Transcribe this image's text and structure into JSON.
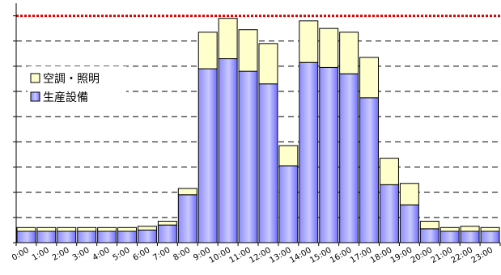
{
  "chart_data": {
    "type": "bar",
    "stacked": true,
    "categories": [
      "0:00",
      "1:00",
      "2:00",
      "3:00",
      "4:00",
      "5:00",
      "6:00",
      "7:00",
      "8:00",
      "9:00",
      "10:00",
      "11:00",
      "12:00",
      "13:00",
      "14:00",
      "15:00",
      "16:00",
      "17:00",
      "18:00",
      "19:00",
      "20:00",
      "21:00",
      "22:00",
      "23:00"
    ],
    "series": [
      {
        "name": "生産設備",
        "color": "#6666ff",
        "values": [
          0.45,
          0.45,
          0.45,
          0.45,
          0.45,
          0.45,
          0.5,
          0.7,
          1.9,
          6.9,
          7.3,
          6.8,
          6.3,
          3.05,
          7.15,
          6.95,
          6.7,
          5.75,
          2.3,
          1.5,
          0.55,
          0.45,
          0.45,
          0.45
        ]
      },
      {
        "name": "空調・照明",
        "color": "#ffffcc",
        "values": [
          0.15,
          0.15,
          0.15,
          0.15,
          0.15,
          0.15,
          0.15,
          0.15,
          0.25,
          1.45,
          1.6,
          1.65,
          1.6,
          0.8,
          1.65,
          1.55,
          1.65,
          1.6,
          1.05,
          0.85,
          0.3,
          0.15,
          0.2,
          0.15
        ]
      }
    ],
    "ylim": [
      0,
      9.5
    ],
    "y_gridlines": [
      1,
      2,
      3,
      4,
      5,
      6,
      7,
      8
    ],
    "reference_line": {
      "value": 9,
      "color": "#dd0000",
      "style": "dotted"
    },
    "legend_position": "upper-left",
    "legend_order": [
      "空調・照明",
      "生産設備"
    ],
    "title": "",
    "xlabel": "",
    "ylabel": ""
  }
}
